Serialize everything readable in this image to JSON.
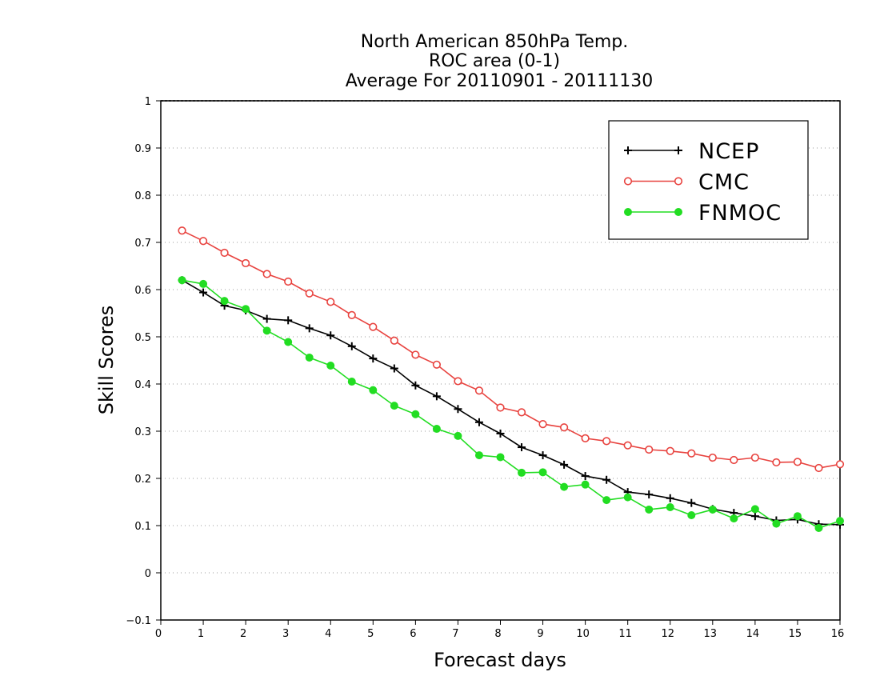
{
  "chart_data": {
    "type": "line",
    "title_lines": [
      "North American 850hPa Temp.",
      "ROC area (0-1)",
      "Average For 20110901 - 20111130"
    ],
    "xlabel": "Forecast days",
    "ylabel": "Skill Scores",
    "xlim": [
      0,
      16
    ],
    "ylim": [
      -0.1,
      1
    ],
    "x_ticks": [
      "0",
      "1",
      "2",
      "3",
      "4",
      "5",
      "6",
      "7",
      "8",
      "9",
      "10",
      "11",
      "12",
      "13",
      "14",
      "15",
      "16"
    ],
    "y_ticks": [
      "−0.1",
      "0",
      "0.1",
      "0.2",
      "0.3",
      "0.4",
      "0.5",
      "0.6",
      "0.7",
      "0.8",
      "0.9",
      "1"
    ],
    "grid": true,
    "legend_position": "top-right",
    "x": [
      0.5,
      1,
      1.5,
      2,
      2.5,
      3,
      3.5,
      4,
      4.5,
      5,
      5.5,
      6,
      6.5,
      7,
      7.5,
      8,
      8.5,
      9,
      9.5,
      10,
      10.5,
      11,
      11.5,
      12,
      12.5,
      13,
      13.5,
      14,
      14.5,
      15,
      15.5,
      16
    ],
    "series": [
      {
        "name": "NCEP",
        "color": "#000000",
        "marker": "plus",
        "values": [
          0.62,
          0.594,
          0.566,
          0.556,
          0.538,
          0.535,
          0.518,
          0.503,
          0.48,
          0.454,
          0.433,
          0.397,
          0.374,
          0.347,
          0.319,
          0.295,
          0.266,
          0.249,
          0.229,
          0.205,
          0.197,
          0.171,
          0.166,
          0.158,
          0.148,
          0.135,
          0.127,
          0.12,
          0.111,
          0.113,
          0.103,
          0.102
        ]
      },
      {
        "name": "CMC",
        "color": "#e8433f",
        "marker": "open-circle",
        "values": [
          0.725,
          0.703,
          0.678,
          0.656,
          0.633,
          0.617,
          0.592,
          0.574,
          0.546,
          0.521,
          0.492,
          0.462,
          0.441,
          0.406,
          0.386,
          0.35,
          0.34,
          0.315,
          0.308,
          0.285,
          0.279,
          0.27,
          0.261,
          0.258,
          0.253,
          0.244,
          0.239,
          0.244,
          0.234,
          0.235,
          0.222,
          0.23
        ]
      },
      {
        "name": "FNMOC",
        "color": "#22dd22",
        "marker": "filled-circle",
        "values": [
          0.62,
          0.612,
          0.576,
          0.559,
          0.513,
          0.489,
          0.456,
          0.439,
          0.405,
          0.387,
          0.354,
          0.336,
          0.305,
          0.29,
          0.249,
          0.245,
          0.212,
          0.213,
          0.182,
          0.187,
          0.154,
          0.16,
          0.134,
          0.139,
          0.122,
          0.134,
          0.115,
          0.135,
          0.104,
          0.12,
          0.095,
          0.11
        ]
      }
    ]
  }
}
